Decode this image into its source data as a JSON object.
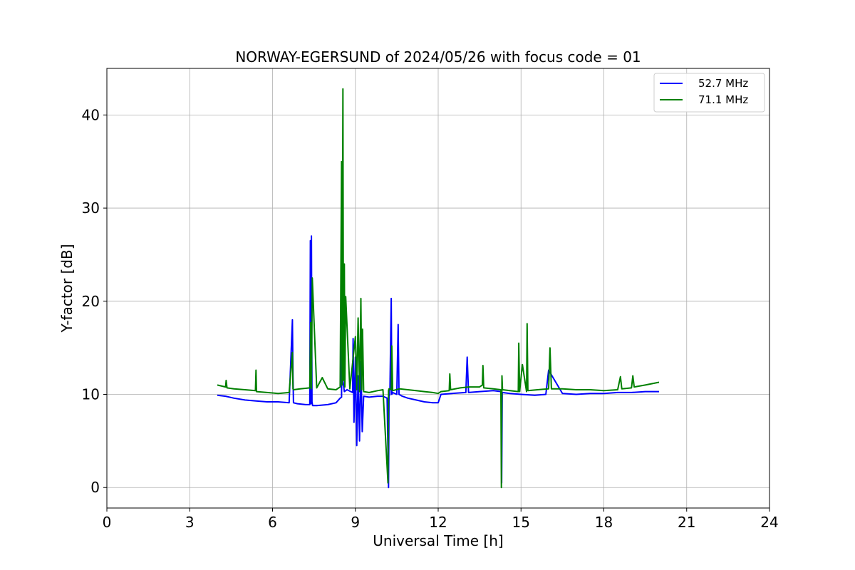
{
  "chart_data": {
    "type": "line",
    "title": "NORWAY-EGERSUND of 2024/05/26 with focus code = 01",
    "xlabel": "Universal Time [h]",
    "ylabel": "Y-factor [dB]",
    "xlim": [
      0,
      24
    ],
    "ylim": [
      -2.2,
      45
    ],
    "xticks": [
      0,
      3,
      6,
      9,
      12,
      15,
      18,
      21,
      24
    ],
    "yticks": [
      0,
      10,
      20,
      30,
      40
    ],
    "grid": true,
    "legend_position": "top-right",
    "series": [
      {
        "name": "52.7 MHz",
        "color": "#0000ff",
        "x": [
          4.0,
          4.3,
          4.6,
          5.0,
          5.4,
          5.8,
          6.2,
          6.6,
          6.72,
          6.74,
          6.76,
          6.9,
          7.2,
          7.35,
          7.37,
          7.39,
          7.41,
          7.43,
          7.45,
          7.6,
          8.0,
          8.3,
          8.45,
          8.5,
          8.52,
          8.55,
          8.6,
          8.7,
          8.9,
          8.92,
          8.95,
          9.0,
          9.05,
          9.1,
          9.15,
          9.2,
          9.25,
          9.3,
          9.5,
          9.8,
          10.0,
          10.15,
          10.2,
          10.22,
          10.25,
          10.3,
          10.32,
          10.35,
          10.5,
          10.55,
          10.58,
          10.7,
          10.9,
          11.2,
          11.5,
          11.8,
          12.0,
          12.1,
          12.5,
          13.0,
          13.05,
          13.1,
          13.5,
          14.0,
          14.28,
          14.3,
          14.32,
          14.6,
          15.0,
          15.5,
          15.9,
          16.0,
          16.5,
          17.0,
          17.5,
          18.0,
          18.5,
          19.0,
          19.5,
          20.0
        ],
        "y": [
          9.9,
          9.8,
          9.6,
          9.4,
          9.3,
          9.2,
          9.2,
          9.1,
          18.0,
          12.0,
          9.1,
          9.0,
          8.9,
          8.9,
          26.5,
          9.0,
          27.0,
          9.2,
          8.8,
          8.8,
          8.9,
          9.1,
          9.6,
          9.7,
          30.0,
          11.5,
          10.3,
          10.5,
          10.2,
          16.0,
          7.0,
          14.0,
          4.5,
          12.0,
          5.0,
          13.5,
          6.0,
          9.8,
          9.7,
          9.8,
          9.8,
          9.6,
          0.0,
          9.8,
          10.0,
          20.3,
          10.0,
          10.2,
          10.0,
          17.5,
          10.0,
          9.8,
          9.6,
          9.4,
          9.2,
          9.1,
          9.1,
          10.0,
          10.1,
          10.2,
          14.0,
          10.2,
          10.3,
          10.4,
          10.3,
          0.5,
          10.2,
          10.1,
          10.0,
          9.9,
          10.0,
          12.6,
          10.1,
          10.0,
          10.1,
          10.1,
          10.2,
          10.2,
          10.3,
          10.3
        ]
      },
      {
        "name": "71.1 MHz",
        "color": "#008000",
        "x": [
          4.0,
          4.3,
          4.32,
          4.35,
          4.6,
          5.0,
          5.38,
          5.4,
          5.42,
          5.8,
          6.2,
          6.6,
          6.72,
          6.74,
          6.76,
          7.0,
          7.35,
          7.38,
          7.41,
          7.44,
          7.6,
          7.8,
          8.0,
          8.3,
          8.45,
          8.5,
          8.52,
          8.55,
          8.57,
          8.6,
          8.62,
          8.65,
          8.8,
          9.0,
          9.05,
          9.1,
          9.15,
          9.2,
          9.23,
          9.26,
          9.3,
          9.5,
          9.8,
          10.0,
          10.18,
          10.2,
          10.22,
          10.3,
          10.32,
          10.35,
          10.6,
          10.9,
          11.2,
          11.5,
          11.8,
          12.0,
          12.1,
          12.4,
          12.42,
          12.45,
          12.8,
          13.1,
          13.5,
          13.6,
          13.62,
          13.65,
          14.0,
          14.27,
          14.29,
          14.31,
          14.33,
          14.6,
          14.9,
          14.92,
          14.95,
          15.05,
          15.2,
          15.22,
          15.25,
          15.6,
          16.0,
          16.05,
          16.1,
          16.5,
          17.0,
          17.5,
          18.0,
          18.5,
          18.6,
          18.65,
          19.0,
          19.05,
          19.1,
          19.5,
          20.0
        ],
        "y": [
          11.0,
          10.8,
          11.5,
          10.7,
          10.6,
          10.5,
          10.4,
          12.6,
          10.3,
          10.2,
          10.1,
          10.2,
          14.5,
          10.6,
          10.5,
          10.6,
          10.7,
          17.7,
          10.6,
          22.5,
          10.7,
          11.8,
          10.6,
          10.5,
          10.8,
          35.0,
          11.0,
          42.8,
          11.5,
          24.0,
          10.8,
          20.5,
          10.6,
          16.2,
          10.5,
          18.2,
          10.3,
          20.3,
          10.5,
          17.0,
          10.3,
          10.2,
          10.4,
          10.5,
          0.5,
          10.4,
          10.6,
          10.5,
          15.2,
          10.4,
          10.6,
          10.5,
          10.4,
          10.3,
          10.2,
          10.1,
          10.3,
          10.4,
          12.2,
          10.5,
          10.7,
          10.8,
          10.8,
          11.0,
          13.1,
          10.7,
          10.6,
          10.5,
          0.0,
          12.0,
          10.5,
          10.4,
          10.3,
          15.5,
          10.3,
          13.2,
          10.3,
          17.6,
          10.4,
          10.5,
          10.6,
          15.0,
          10.6,
          10.6,
          10.5,
          10.5,
          10.4,
          10.5,
          11.9,
          10.6,
          10.7,
          12.0,
          10.8,
          11.0,
          11.3
        ]
      }
    ]
  }
}
